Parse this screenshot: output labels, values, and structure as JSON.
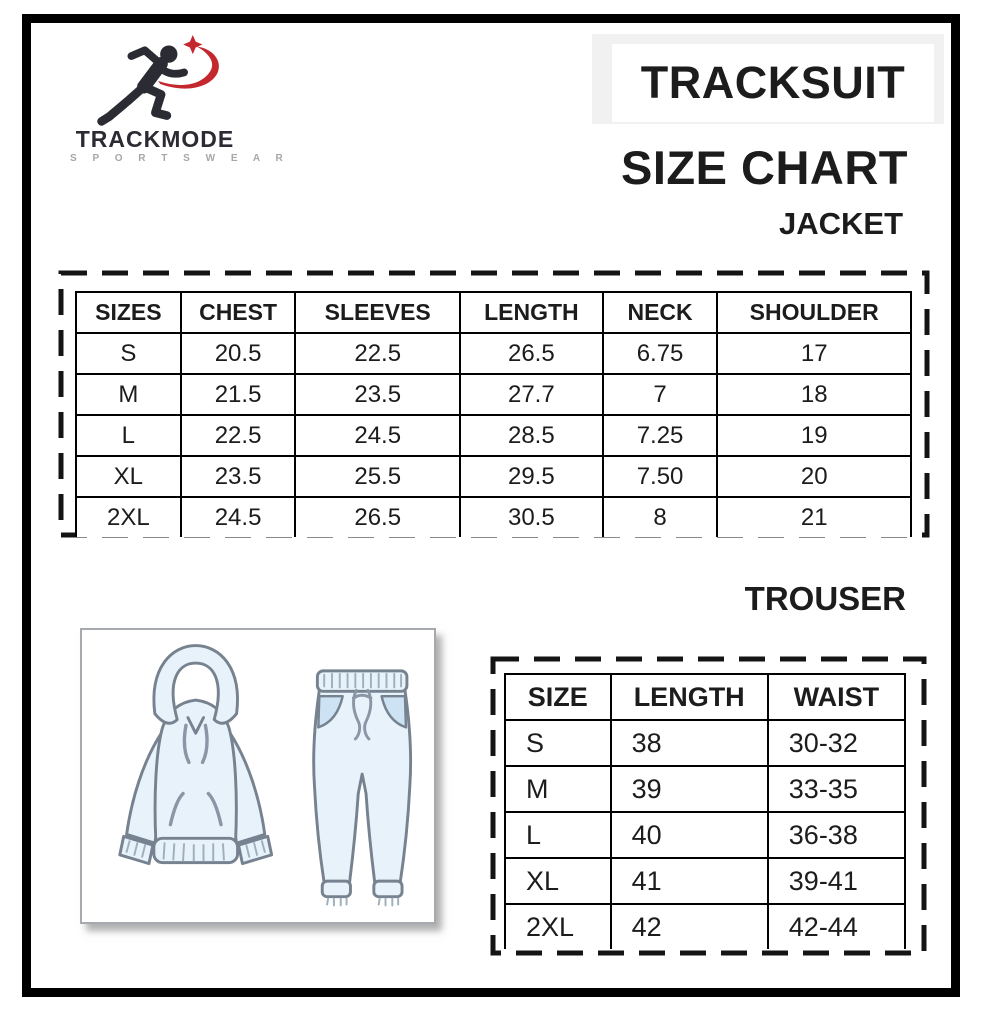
{
  "brand": {
    "name": "TRACKMODE",
    "tagline": "S P O R T S W E A R",
    "logo_icon": "running-man-with-red-swoosh"
  },
  "title": {
    "line1": "TRACKSUIT",
    "line2": "SIZE CHART"
  },
  "jacket": {
    "heading": "JACKET",
    "columns": [
      "SIZES",
      "CHEST",
      "SLEEVES",
      "LENGTH",
      "NECK",
      "SHOULDER"
    ],
    "rows": [
      [
        "S",
        "20.5",
        "22.5",
        "26.5",
        "6.75",
        "17"
      ],
      [
        "M",
        "21.5",
        "23.5",
        "27.7",
        "7",
        "18"
      ],
      [
        "L",
        "22.5",
        "24.5",
        "28.5",
        "7.25",
        "19"
      ],
      [
        "XL",
        "23.5",
        "25.5",
        "29.5",
        "7.50",
        "20"
      ],
      [
        "2XL",
        "24.5",
        "26.5",
        "30.5",
        "8",
        "21"
      ]
    ]
  },
  "trouser": {
    "heading": "TROUSER",
    "columns": [
      "SIZE",
      "LENGTH",
      "WAIST"
    ],
    "rows": [
      [
        "S",
        "38",
        "30-32"
      ],
      [
        "M",
        "39",
        "33-35"
      ],
      [
        "L",
        "40",
        "36-38"
      ],
      [
        "XL",
        "41",
        "39-41"
      ],
      [
        "2XL",
        "42",
        "42-44"
      ]
    ]
  },
  "illustration": {
    "description": "hoodie-and-jogger-pants-drawing"
  },
  "colors": {
    "ink": "#1c1c1c",
    "logo_dark": "#2b2b33",
    "logo_gray": "#a7a7a7",
    "accent_red": "#c4272e",
    "panel_gray": "#f1f1f1",
    "garment_fill": "#e7f2fa",
    "garment_pocket": "#cde3f4",
    "garment_outline": "#76828f"
  }
}
